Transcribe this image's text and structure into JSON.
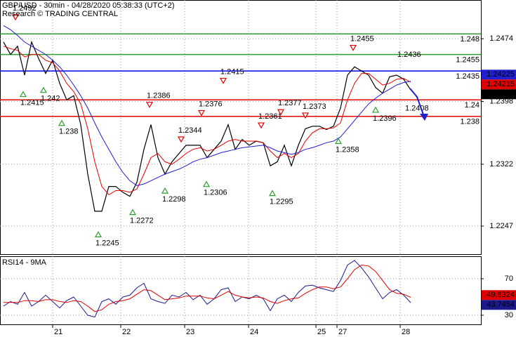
{
  "chart_data": [
    {
      "type": "line",
      "title": "GBP/USD - 30min - 04/28/2020 05:38:33 (UTC+2)",
      "subtitle": "Research © TRADING CENTRAL",
      "xlim": [
        -0.5,
        68
      ],
      "ylim": [
        1.2213,
        1.2521
      ],
      "yticks": [
        1.2474,
        1.2398,
        1.2322,
        1.2247
      ],
      "grid": true,
      "series": [
        {
          "color": "#000000",
          "values": [
            1.247,
            1.2455,
            1.2465,
            1.243,
            1.247,
            1.245,
            1.2432,
            1.2448,
            1.242,
            1.24,
            1.2405,
            1.237,
            1.231,
            1.2265,
            1.2265,
            1.2295,
            1.2295,
            1.2288,
            1.2283,
            1.23,
            1.234,
            1.237,
            1.233,
            1.231,
            1.2325,
            1.2335,
            1.2345,
            1.2345,
            1.2345,
            1.233,
            1.234,
            1.235,
            1.237,
            1.234,
            1.2352,
            1.2345,
            1.235,
            1.2348,
            1.232,
            1.2325,
            1.2345,
            1.232,
            1.2345,
            1.2365,
            1.2368,
            1.2368,
            1.2364,
            1.2368,
            1.239,
            1.243,
            1.244,
            1.2435,
            1.243,
            1.2415,
            1.2408,
            1.2428,
            1.243,
            1.2425,
            1.2412
          ]
        },
        {
          "color": "#e00000",
          "values": [
            1.2465,
            1.2462,
            1.246,
            1.2452,
            1.2455,
            1.2455,
            1.2448,
            1.2445,
            1.2435,
            1.242,
            1.241,
            1.2395,
            1.2365,
            1.2325,
            1.2295,
            1.2285,
            1.229,
            1.229,
            1.2288,
            1.2292,
            1.231,
            1.233,
            1.2335,
            1.2325,
            1.2322,
            1.2328,
            1.2335,
            1.234,
            1.2342,
            1.2338,
            1.234,
            1.2345,
            1.235,
            1.2352,
            1.235,
            1.235,
            1.235,
            1.2348,
            1.2338,
            1.233,
            1.2335,
            1.233,
            1.2335,
            1.235,
            1.236,
            1.2365,
            1.2365,
            1.2366,
            1.2372,
            1.24,
            1.242,
            1.2432,
            1.2432,
            1.2425,
            1.2418,
            1.242,
            1.2425,
            1.2426,
            1.24215
          ]
        },
        {
          "color": "#1f1fd0",
          "values": [
            1.249,
            1.2485,
            1.2478,
            1.247,
            1.2465,
            1.246,
            1.2455,
            1.2448,
            1.244,
            1.243,
            1.2418,
            1.2405,
            1.239,
            1.2372,
            1.2355,
            1.234,
            1.2325,
            1.2312,
            1.2302,
            1.2296,
            1.2298,
            1.2302,
            1.2306,
            1.231,
            1.2313,
            1.2316,
            1.232,
            1.2325,
            1.2328,
            1.233,
            1.2333,
            1.2336,
            1.2338,
            1.234,
            1.2342,
            1.2343,
            1.2344,
            1.2345,
            1.2342,
            1.2338,
            1.2336,
            1.2334,
            1.2336,
            1.234,
            1.2342,
            1.2345,
            1.2348,
            1.235,
            1.2355,
            1.2365,
            1.2375,
            1.2385,
            1.2395,
            1.2402,
            1.2408,
            1.2413,
            1.2418,
            1.2421,
            1.24225
          ]
        }
      ],
      "levels": [
        {
          "value": 1.248,
          "color": "#2e9e2e"
        },
        {
          "value": 1.2455,
          "color": "#2e9e2e"
        },
        {
          "value": 1.2435,
          "color": "#0000ee"
        },
        {
          "value": 1.24,
          "color": "#e00000"
        },
        {
          "value": 1.238,
          "color": "#e00000"
        }
      ],
      "annotations": [
        {
          "x": 1.7,
          "value": 1.2492,
          "dir": "down",
          "marker": true
        },
        {
          "x": 2.8,
          "value": 1.2415,
          "dir": "up",
          "marker": true
        },
        {
          "x": 5.7,
          "value": 1.242,
          "dir": "up",
          "marker": true
        },
        {
          "x": 8.3,
          "value": 1.238,
          "dir": "up",
          "marker": true
        },
        {
          "x": 13.5,
          "value": 1.2245,
          "dir": "up",
          "marker": true
        },
        {
          "x": 18.4,
          "value": 1.2272,
          "dir": "up",
          "marker": true
        },
        {
          "x": 20.8,
          "value": 1.2386,
          "dir": "down",
          "marker": true
        },
        {
          "x": 23,
          "value": 1.2298,
          "dir": "up",
          "marker": true
        },
        {
          "x": 25.3,
          "value": 1.2344,
          "dir": "down",
          "marker": true
        },
        {
          "x": 28.2,
          "value": 1.2376,
          "dir": "down",
          "marker": true
        },
        {
          "x": 28.9,
          "value": 1.2306,
          "dir": "up",
          "marker": true
        },
        {
          "x": 31.3,
          "value": 1.2415,
          "dir": "down",
          "marker": true
        },
        {
          "x": 36.7,
          "value": 1.2361,
          "dir": "down",
          "marker": true
        },
        {
          "x": 38.3,
          "value": 1.2295,
          "dir": "up",
          "marker": true
        },
        {
          "x": 39.5,
          "value": 1.2377,
          "dir": "down",
          "marker": true
        },
        {
          "x": 43,
          "value": 1.2373,
          "dir": "down",
          "marker": true
        },
        {
          "x": 47.7,
          "value": 1.2358,
          "dir": "up",
          "marker": true
        },
        {
          "x": 49.8,
          "value": 1.2455,
          "dir": "down",
          "marker": true
        },
        {
          "x": 53,
          "value": 1.2396,
          "dir": "up",
          "marker": true
        },
        {
          "x": 56.5,
          "value": 1.2436,
          "dir": "down",
          "marker": false
        },
        {
          "x": 57.6,
          "value": 1.2408,
          "dir": "up",
          "marker": false
        }
      ]
    },
    {
      "type": "line",
      "title": "RSI14 - 9MA",
      "xlim": [
        -0.5,
        68
      ],
      "ylim": [
        20,
        94.6
      ],
      "yticks": [
        70,
        30
      ],
      "grid": true,
      "xticks": [
        {
          "value": 7,
          "label": "21"
        },
        {
          "value": 16.7,
          "label": "22"
        },
        {
          "value": 25.8,
          "label": "23"
        },
        {
          "value": 34.9,
          "label": "24"
        },
        {
          "value": 44.5,
          "label": "25"
        },
        {
          "value": 47.5,
          "label": "27"
        },
        {
          "value": 56.5,
          "label": "28"
        }
      ],
      "series": [
        {
          "color": "#1a1a8c",
          "values": [
            40,
            45,
            42,
            55,
            40,
            45,
            52,
            45,
            38,
            46,
            50,
            40,
            30,
            28,
            45,
            48,
            42,
            50,
            52,
            60,
            65,
            48,
            45,
            43,
            52,
            50,
            55,
            47,
            52,
            42,
            48,
            58,
            60,
            45,
            50,
            48,
            52,
            48,
            35,
            48,
            52,
            45,
            55,
            62,
            63,
            60,
            58,
            56,
            68,
            85,
            90,
            82,
            72,
            60,
            48,
            55,
            58,
            52,
            43.7454
          ]
        },
        {
          "color": "#e00000",
          "values": [
            44,
            44,
            44,
            46,
            46,
            45,
            47,
            47,
            45,
            44,
            46,
            45,
            40,
            34,
            36,
            42,
            45,
            46,
            48,
            53,
            58,
            57,
            52,
            47,
            48,
            49,
            51,
            51,
            51,
            49,
            48,
            52,
            56,
            52,
            50,
            49,
            50,
            49,
            45,
            43,
            46,
            48,
            49,
            54,
            58,
            61,
            61,
            59,
            61,
            70,
            80,
            85,
            84,
            78,
            68,
            58,
            54,
            53,
            49.6324
          ]
        }
      ]
    }
  ]
}
